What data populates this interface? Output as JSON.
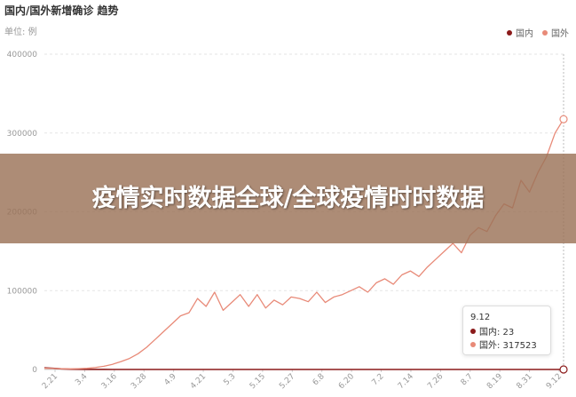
{
  "title": "国内/国外新增确诊 趋势",
  "unit": "单位: 例",
  "banner": "疫情实时数据全球/全球疫情时时数据",
  "colors": {
    "domestic": "#8b1a1a",
    "foreign": "#e88a78",
    "grid": "#e6e6e6",
    "axis": "#999999"
  },
  "tooltip": {
    "date": "9.12",
    "rows": [
      {
        "name": "国内",
        "text": "国内: 23"
      },
      {
        "name": "国外",
        "text": "国外: 317523"
      }
    ]
  },
  "chart_data": {
    "type": "line",
    "title": "国内/国外新增确诊 趋势",
    "ylabel": "单位: 例",
    "ylim": [
      0,
      400000
    ],
    "yticks": [
      0,
      100000,
      200000,
      300000,
      400000
    ],
    "ytick_labels": [
      "0",
      "100000",
      "200000",
      "300000",
      "400000"
    ],
    "xtick_labels": [
      "2.21",
      "3.4",
      "3.16",
      "3.28",
      "4.9",
      "4.21",
      "5.3",
      "5.15",
      "5.27",
      "6.8",
      "6.20",
      "7.2",
      "7.14",
      "7.26",
      "8.7",
      "8.19",
      "8.31",
      "9.12"
    ],
    "legend": "top-right",
    "series": [
      {
        "name": "国内",
        "values": [
          2000,
          1500,
          800,
          300,
          200,
          100,
          90,
          60,
          40,
          30,
          25,
          20,
          15,
          20,
          30,
          40,
          30,
          20,
          15,
          10,
          12,
          15,
          20,
          25,
          20,
          15,
          10,
          10,
          12,
          8,
          6,
          5,
          5,
          10,
          30,
          40,
          25,
          15,
          10,
          8,
          7,
          12,
          20,
          25,
          20,
          15,
          10,
          8,
          6,
          5,
          5,
          6,
          7,
          8,
          10,
          12,
          15,
          18,
          20,
          22,
          25,
          23
        ]
      },
      {
        "name": "国外",
        "values": [
          1500,
          1200,
          900,
          800,
          1000,
          1500,
          2500,
          4000,
          6500,
          10000,
          14000,
          20000,
          28000,
          38000,
          48000,
          58000,
          68000,
          72000,
          90000,
          80000,
          98000,
          75000,
          85000,
          95000,
          80000,
          95000,
          78000,
          88000,
          82000,
          92000,
          90000,
          86000,
          98000,
          85000,
          92000,
          95000,
          100000,
          105000,
          98000,
          110000,
          115000,
          108000,
          120000,
          125000,
          118000,
          130000,
          140000,
          150000,
          160000,
          148000,
          170000,
          180000,
          175000,
          195000,
          210000,
          205000,
          240000,
          225000,
          250000,
          270000,
          300000,
          317523
        ]
      }
    ]
  }
}
